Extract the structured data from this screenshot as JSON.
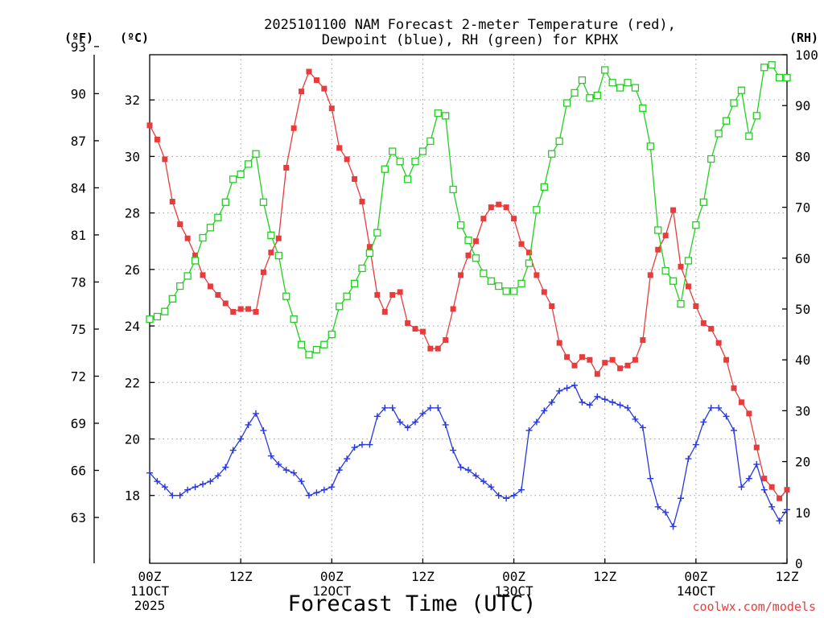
{
  "chart_data": {
    "type": "line",
    "title_line1": "2025101100 NAM Forecast 2-meter Temperature (red),",
    "title_line2": "Dewpoint (blue), RH (green) for KPHX",
    "xlabel": "Forecast Time (UTC)",
    "credit": "coolwx.com/models",
    "unit_f": "(ºF)",
    "unit_c": "(ºC)",
    "unit_rh": "(RH)",
    "x_range": [
      0,
      84
    ],
    "c_range": [
      15.6,
      33.6
    ],
    "rh_range": [
      0,
      100
    ],
    "x_ticks": [
      {
        "x": 0,
        "lines": [
          "00Z",
          "11OCT",
          "2025"
        ]
      },
      {
        "x": 12,
        "lines": [
          "12Z"
        ]
      },
      {
        "x": 24,
        "lines": [
          "00Z",
          "12OCT"
        ]
      },
      {
        "x": 36,
        "lines": [
          "12Z"
        ]
      },
      {
        "x": 48,
        "lines": [
          "00Z",
          "13OCT"
        ]
      },
      {
        "x": 60,
        "lines": [
          "12Z"
        ]
      },
      {
        "x": 72,
        "lines": [
          "00Z",
          "14OCT"
        ]
      },
      {
        "x": 84,
        "lines": [
          "12Z"
        ]
      }
    ],
    "c_ticks": [
      18,
      20,
      22,
      24,
      26,
      28,
      30,
      32
    ],
    "f_ticks": [
      63,
      66,
      69,
      72,
      75,
      78,
      81,
      84,
      87,
      90,
      93
    ],
    "rh_ticks": [
      0,
      10,
      20,
      30,
      40,
      50,
      60,
      70,
      80,
      90,
      100
    ],
    "series": [
      {
        "name": "Temperature",
        "color": "#e83c3c",
        "marker": "filled-square",
        "axis": "c",
        "x": [
          0,
          1,
          2,
          3,
          4,
          5,
          6,
          7,
          8,
          9,
          10,
          11,
          12,
          13,
          14,
          15,
          16,
          17,
          18,
          19,
          20,
          21,
          22,
          23,
          24,
          25,
          26,
          27,
          28,
          29,
          30,
          31,
          32,
          33,
          34,
          35,
          36,
          37,
          38,
          39,
          40,
          41,
          42,
          43,
          44,
          45,
          46,
          47,
          48,
          49,
          50,
          51,
          52,
          53,
          54,
          55,
          56,
          57,
          58,
          59,
          60,
          61,
          62,
          63,
          64,
          65,
          66,
          67,
          68,
          69,
          70,
          71,
          72,
          73,
          74,
          75,
          76,
          77,
          78,
          79,
          80,
          81,
          82,
          83,
          84
        ],
        "values": [
          31.1,
          30.6,
          29.9,
          28.4,
          27.6,
          27.1,
          26.5,
          25.8,
          25.4,
          25.1,
          24.8,
          24.5,
          24.6,
          24.6,
          24.5,
          25.9,
          26.6,
          27.1,
          29.6,
          31.0,
          32.3,
          33.0,
          32.7,
          32.4,
          31.7,
          30.3,
          29.9,
          29.2,
          28.4,
          26.8,
          25.1,
          24.5,
          25.1,
          25.2,
          24.1,
          23.9,
          23.8,
          23.2,
          23.2,
          23.5,
          24.6,
          25.8,
          26.5,
          27.0,
          27.8,
          28.2,
          28.3,
          28.2,
          27.8,
          26.9,
          26.6,
          25.8,
          25.2,
          24.7,
          23.4,
          22.9,
          22.6,
          22.9,
          22.8,
          22.3,
          22.7,
          22.8,
          22.5,
          22.6,
          22.8,
          23.5,
          25.8,
          26.7,
          27.2,
          28.1,
          26.1,
          25.4,
          24.7,
          24.1,
          23.9,
          23.4,
          22.8,
          21.8,
          21.3,
          20.9,
          19.7,
          18.6,
          18.3,
          17.9,
          18.2
        ]
      },
      {
        "name": "Dewpoint",
        "color": "#2838e0",
        "marker": "plus",
        "axis": "c",
        "x": [
          0,
          1,
          2,
          3,
          4,
          5,
          6,
          7,
          8,
          9,
          10,
          11,
          12,
          13,
          14,
          15,
          16,
          17,
          18,
          19,
          20,
          21,
          22,
          23,
          24,
          25,
          26,
          27,
          28,
          29,
          30,
          31,
          32,
          33,
          34,
          35,
          36,
          37,
          38,
          39,
          40,
          41,
          42,
          43,
          44,
          45,
          46,
          47,
          48,
          49,
          50,
          51,
          52,
          53,
          54,
          55,
          56,
          57,
          58,
          59,
          60,
          61,
          62,
          63,
          64,
          65,
          66,
          67,
          68,
          69,
          70,
          71,
          72,
          73,
          74,
          75,
          76,
          77,
          78,
          79,
          80,
          81,
          82,
          83,
          84
        ],
        "values": [
          18.8,
          18.5,
          18.3,
          18.0,
          18.0,
          18.2,
          18.3,
          18.4,
          18.5,
          18.7,
          19.0,
          19.6,
          20.0,
          20.5,
          20.9,
          20.3,
          19.4,
          19.1,
          18.9,
          18.8,
          18.5,
          18.0,
          18.1,
          18.2,
          18.3,
          18.9,
          19.3,
          19.7,
          19.8,
          19.8,
          20.8,
          21.1,
          21.1,
          20.6,
          20.4,
          20.6,
          20.9,
          21.1,
          21.1,
          20.5,
          19.6,
          19.0,
          18.9,
          18.7,
          18.5,
          18.3,
          18.0,
          17.9,
          18.0,
          18.2,
          20.3,
          20.6,
          21.0,
          21.3,
          21.7,
          21.8,
          21.9,
          21.3,
          21.2,
          21.5,
          21.4,
          21.3,
          21.2,
          21.1,
          20.7,
          20.4,
          18.6,
          17.6,
          17.4,
          16.9,
          17.9,
          19.3,
          19.8,
          20.6,
          21.1,
          21.1,
          20.8,
          20.3,
          18.3,
          18.6,
          19.1,
          18.2,
          17.6,
          17.1,
          17.5
        ]
      },
      {
        "name": "RH",
        "color": "#20d020",
        "marker": "open-square",
        "axis": "rh",
        "x": [
          0,
          1,
          2,
          3,
          4,
          5,
          6,
          7,
          8,
          9,
          10,
          11,
          12,
          13,
          14,
          15,
          16,
          17,
          18,
          19,
          20,
          21,
          22,
          23,
          24,
          25,
          26,
          27,
          28,
          29,
          30,
          31,
          32,
          33,
          34,
          35,
          36,
          37,
          38,
          39,
          40,
          41,
          42,
          43,
          44,
          45,
          46,
          47,
          48,
          49,
          50,
          51,
          52,
          53,
          54,
          55,
          56,
          57,
          58,
          59,
          60,
          61,
          62,
          63,
          64,
          65,
          66,
          67,
          68,
          69,
          70,
          71,
          72,
          73,
          74,
          75,
          76,
          77,
          78,
          79,
          80,
          81,
          82,
          83,
          84
        ],
        "values": [
          48,
          48.5,
          49.5,
          52,
          54.5,
          56.5,
          59.5,
          64,
          66,
          68,
          71,
          75.5,
          76.5,
          78.5,
          80.5,
          71,
          64.5,
          60.5,
          52.5,
          48,
          43,
          41,
          42,
          43,
          45,
          50.5,
          52.5,
          55,
          58,
          61,
          65,
          77.5,
          81,
          79,
          75.5,
          79,
          81,
          83,
          88.5,
          88,
          73.5,
          66.5,
          63.5,
          60,
          57,
          55.5,
          54.5,
          53.5,
          53.5,
          55,
          59,
          69.5,
          74,
          80.5,
          83,
          90.5,
          92.5,
          95,
          91.5,
          92,
          97,
          94.5,
          93.5,
          94.5,
          93.5,
          89.5,
          82,
          65.5,
          57.5,
          55.5,
          51,
          59.5,
          66.5,
          71,
          79.5,
          84.5,
          87,
          90.5,
          93,
          84,
          88,
          97.5,
          98,
          95.5,
          95.5
        ]
      }
    ]
  }
}
